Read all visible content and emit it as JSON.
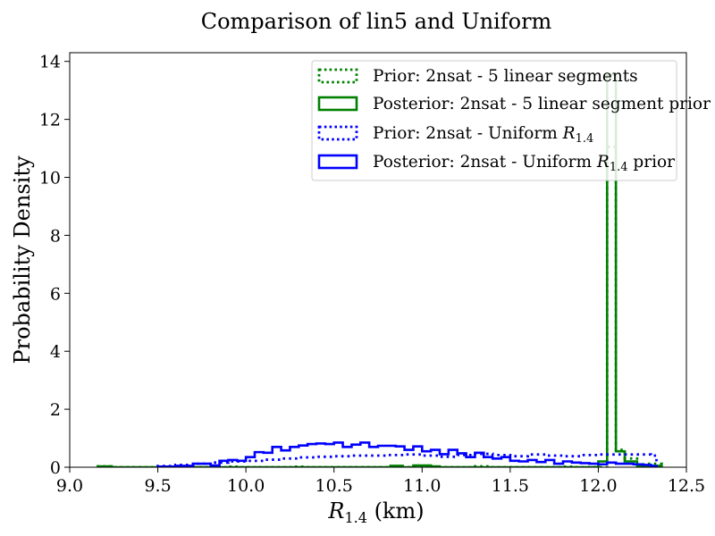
{
  "chart_data": {
    "type": "step-histogram",
    "title": "Comparison of lin5 and Uniform",
    "xlabel": {
      "symbol": "R",
      "sub": "1.4",
      "unit": " (km)"
    },
    "ylabel": "Probability Density",
    "xlim": [
      9.0,
      12.5
    ],
    "ylim": [
      0,
      14.3
    ],
    "xticks": [
      9.0,
      9.5,
      10.0,
      10.5,
      11.0,
      11.5,
      12.0,
      12.5
    ],
    "xtick_labels": [
      "9.0",
      "9.5",
      "10.0",
      "10.5",
      "11.0",
      "11.5",
      "12.0",
      "12.5"
    ],
    "yticks": [
      0,
      2,
      4,
      6,
      8,
      10,
      12,
      14
    ],
    "ytick_labels": [
      "0",
      "2",
      "4",
      "6",
      "8",
      "10",
      "12",
      "14"
    ],
    "legend_position": "upper right",
    "series": [
      {
        "name": "Prior: 2nsat - 5 linear segments",
        "legend_text": [
          "Prior: 2nsat - 5 linear segments"
        ],
        "color": "#008000",
        "style": "dotted",
        "edges": [
          9.16,
          9.24,
          9.9,
          9.97,
          10.26,
          10.33,
          10.82,
          10.89,
          11.3,
          11.37,
          11.8,
          11.87,
          12.05,
          12.1,
          12.15,
          12.22,
          12.28,
          12.36
        ],
        "values": [
          0.03,
          0,
          0.02,
          0,
          0.02,
          0,
          0.03,
          0,
          0.03,
          0,
          0.02,
          0,
          11.05,
          0.6,
          0.3,
          0.1,
          0.12
        ]
      },
      {
        "name": "Posterior: 2nsat - 5 linear segment prior",
        "legend_text": [
          "Posterior: 2nsat - 5 linear segment prior"
        ],
        "color": "#008000",
        "style": "solid",
        "edges": [
          9.16,
          9.24,
          10.82,
          10.89,
          10.95,
          11.05,
          11.1,
          12.0,
          12.05,
          12.1,
          12.15,
          12.22,
          12.36
        ],
        "values": [
          0.03,
          0,
          0.05,
          0,
          0.06,
          0.03,
          0,
          0.2,
          13.55,
          0.55,
          0.2,
          0.05
        ]
      },
      {
        "name": "Prior: 2nsat - Uniform R1.4",
        "legend_text": [
          "Prior: 2nsat - Uniform ",
          "R",
          "1.4"
        ],
        "color": "#0000ff",
        "style": "dotted",
        "edges": [
          9.5,
          9.6,
          9.7,
          9.8,
          9.9,
          10.0,
          10.1,
          10.2,
          10.3,
          10.4,
          10.5,
          10.6,
          10.7,
          10.8,
          10.9,
          11.0,
          11.1,
          11.2,
          11.3,
          11.4,
          11.5,
          11.6,
          11.7,
          11.8,
          11.9,
          12.0,
          12.1,
          12.2,
          12.3,
          12.33
        ],
        "values": [
          0.04,
          0.08,
          0.12,
          0.16,
          0.2,
          0.22,
          0.26,
          0.3,
          0.34,
          0.36,
          0.38,
          0.4,
          0.4,
          0.42,
          0.44,
          0.4,
          0.36,
          0.42,
          0.46,
          0.42,
          0.38,
          0.44,
          0.4,
          0.38,
          0.42,
          0.44,
          0.44,
          0.44,
          0.4
        ]
      },
      {
        "name": "Posterior: 2nsat - Uniform R1.4 prior",
        "legend_text": [
          "Posterior: 2nsat - Uniform ",
          "R",
          "1.4",
          " prior"
        ],
        "color": "#0000ff",
        "style": "solid",
        "edges": [
          9.5,
          9.6,
          9.7,
          9.8,
          9.85,
          9.9,
          9.95,
          10.0,
          10.05,
          10.1,
          10.15,
          10.2,
          10.25,
          10.3,
          10.35,
          10.4,
          10.45,
          10.5,
          10.55,
          10.6,
          10.65,
          10.7,
          10.75,
          10.8,
          10.85,
          10.9,
          10.95,
          11.0,
          11.05,
          11.1,
          11.15,
          11.2,
          11.25,
          11.3,
          11.35,
          11.4,
          11.45,
          11.5,
          11.55,
          11.6,
          11.65,
          11.7,
          11.75,
          11.8,
          11.85,
          11.9,
          11.95,
          12.0,
          12.05,
          12.1,
          12.15,
          12.2,
          12.25,
          12.3,
          12.33
        ],
        "values": [
          0.02,
          0.05,
          0.12,
          0.06,
          0.22,
          0.25,
          0.22,
          0.35,
          0.52,
          0.5,
          0.7,
          0.58,
          0.7,
          0.75,
          0.8,
          0.82,
          0.8,
          0.85,
          0.7,
          0.78,
          0.85,
          0.7,
          0.74,
          0.74,
          0.72,
          0.6,
          0.72,
          0.55,
          0.6,
          0.45,
          0.6,
          0.48,
          0.35,
          0.5,
          0.35,
          0.3,
          0.35,
          0.22,
          0.2,
          0.25,
          0.18,
          0.25,
          0.12,
          0.2,
          0.16,
          0.14,
          0.12,
          0.1,
          0.16,
          0.12,
          0.12,
          0.1,
          0.08,
          0.04
        ]
      }
    ]
  }
}
